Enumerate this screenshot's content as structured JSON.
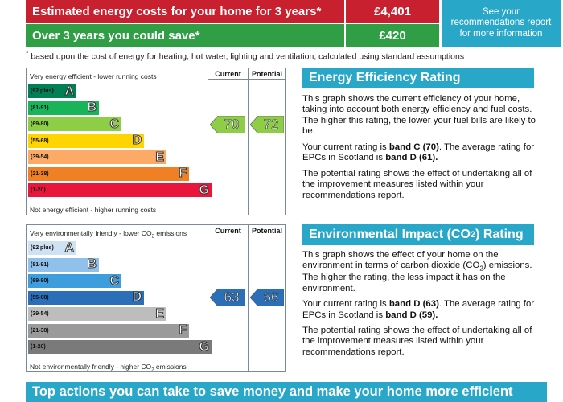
{
  "header": {
    "estimated_label": "Estimated energy costs for your home for 3 years*",
    "estimated_value": "£4,401",
    "save_label": "Over 3 years you could save*",
    "save_value": "£420",
    "see_link": "See your recommendations report for more information"
  },
  "footnote": "based upon the cost of energy for heating, hot water, lighting and ventilation, calculated using standard assumptions",
  "footnote_mark": "*",
  "energy_chart": {
    "top_label": "Very energy efficient - lower running costs",
    "bottom_label": "Not energy efficient - higher running costs",
    "col_current": "Current",
    "col_potential": "Potential",
    "current": "70",
    "potential": "72",
    "bands": [
      {
        "range": "(92 plus)",
        "letter": "A",
        "color": "#008054"
      },
      {
        "range": "(81-91)",
        "letter": "B",
        "color": "#19b459"
      },
      {
        "range": "(69-80)",
        "letter": "C",
        "color": "#8dce46"
      },
      {
        "range": "(55-68)",
        "letter": "D",
        "color": "#ffd500"
      },
      {
        "range": "(39-54)",
        "letter": "E",
        "color": "#fcaa65"
      },
      {
        "range": "(21-38)",
        "letter": "F",
        "color": "#ef8023"
      },
      {
        "range": "(1-20)",
        "letter": "G",
        "color": "#e9153b"
      }
    ],
    "arrow_color": "#8dce46"
  },
  "co2_chart": {
    "top_label_pre": "Very environmentally friendly - lower CO",
    "top_label_sub": "2",
    "top_label_post": " emissions",
    "bottom_label_pre": "Not environmentally friendly - higher CO",
    "bottom_label_sub": "2",
    "bottom_label_post": " emissions",
    "col_current": "Current",
    "col_potential": "Potential",
    "current": "63",
    "potential": "66",
    "bands": [
      {
        "range": "(92 plus)",
        "letter": "A",
        "color": "#cfe2f3"
      },
      {
        "range": "(81-91)",
        "letter": "B",
        "color": "#8fc1ea"
      },
      {
        "range": "(69-80)",
        "letter": "C",
        "color": "#3d9ddd"
      },
      {
        "range": "(55-68)",
        "letter": "D",
        "color": "#2a6fb8"
      },
      {
        "range": "(39-54)",
        "letter": "E",
        "color": "#bdbdbd"
      },
      {
        "range": "(21-38)",
        "letter": "F",
        "color": "#9a9a9a"
      },
      {
        "range": "(1-20)",
        "letter": "G",
        "color": "#7a7a7a"
      }
    ],
    "arrow_color": "#2a6fb8"
  },
  "energy_section": {
    "title": "Energy Efficiency Rating",
    "p1": "This graph shows the current efficiency of your home, taking into account both energy efficiency and fuel costs. The higher this rating, the lower your fuel bills are likely to be.",
    "p2_pre": "Your current rating is ",
    "p2_b1": "band C (70)",
    "p2_mid": ". The average rating for EPCs in Scotland is ",
    "p2_b2": "band D (61).",
    "p3": "The potential rating shows the effect of undertaking all of the improvement measures listed within your recommendations report."
  },
  "co2_section": {
    "title_pre": "Environmental Impact (CO",
    "title_sub": "2",
    "title_post": ") Rating",
    "p1_pre": "This graph shows the effect of your home on the environment in terms of carbon dioxide (CO",
    "p1_sub": "2",
    "p1_post": ") emissions. The higher the rating, the less impact it has on the environment.",
    "p2_pre": "Your current rating is ",
    "p2_b1": "band D (63)",
    "p2_mid": ". The average rating for EPCs in Scotland is ",
    "p2_b2": "band D (59).",
    "p3": "The potential rating shows the effect of undertaking all of the improvement measures listed within your recommendations report."
  },
  "bottom_bar": "Top actions you can take to save money and make your home more efficient"
}
